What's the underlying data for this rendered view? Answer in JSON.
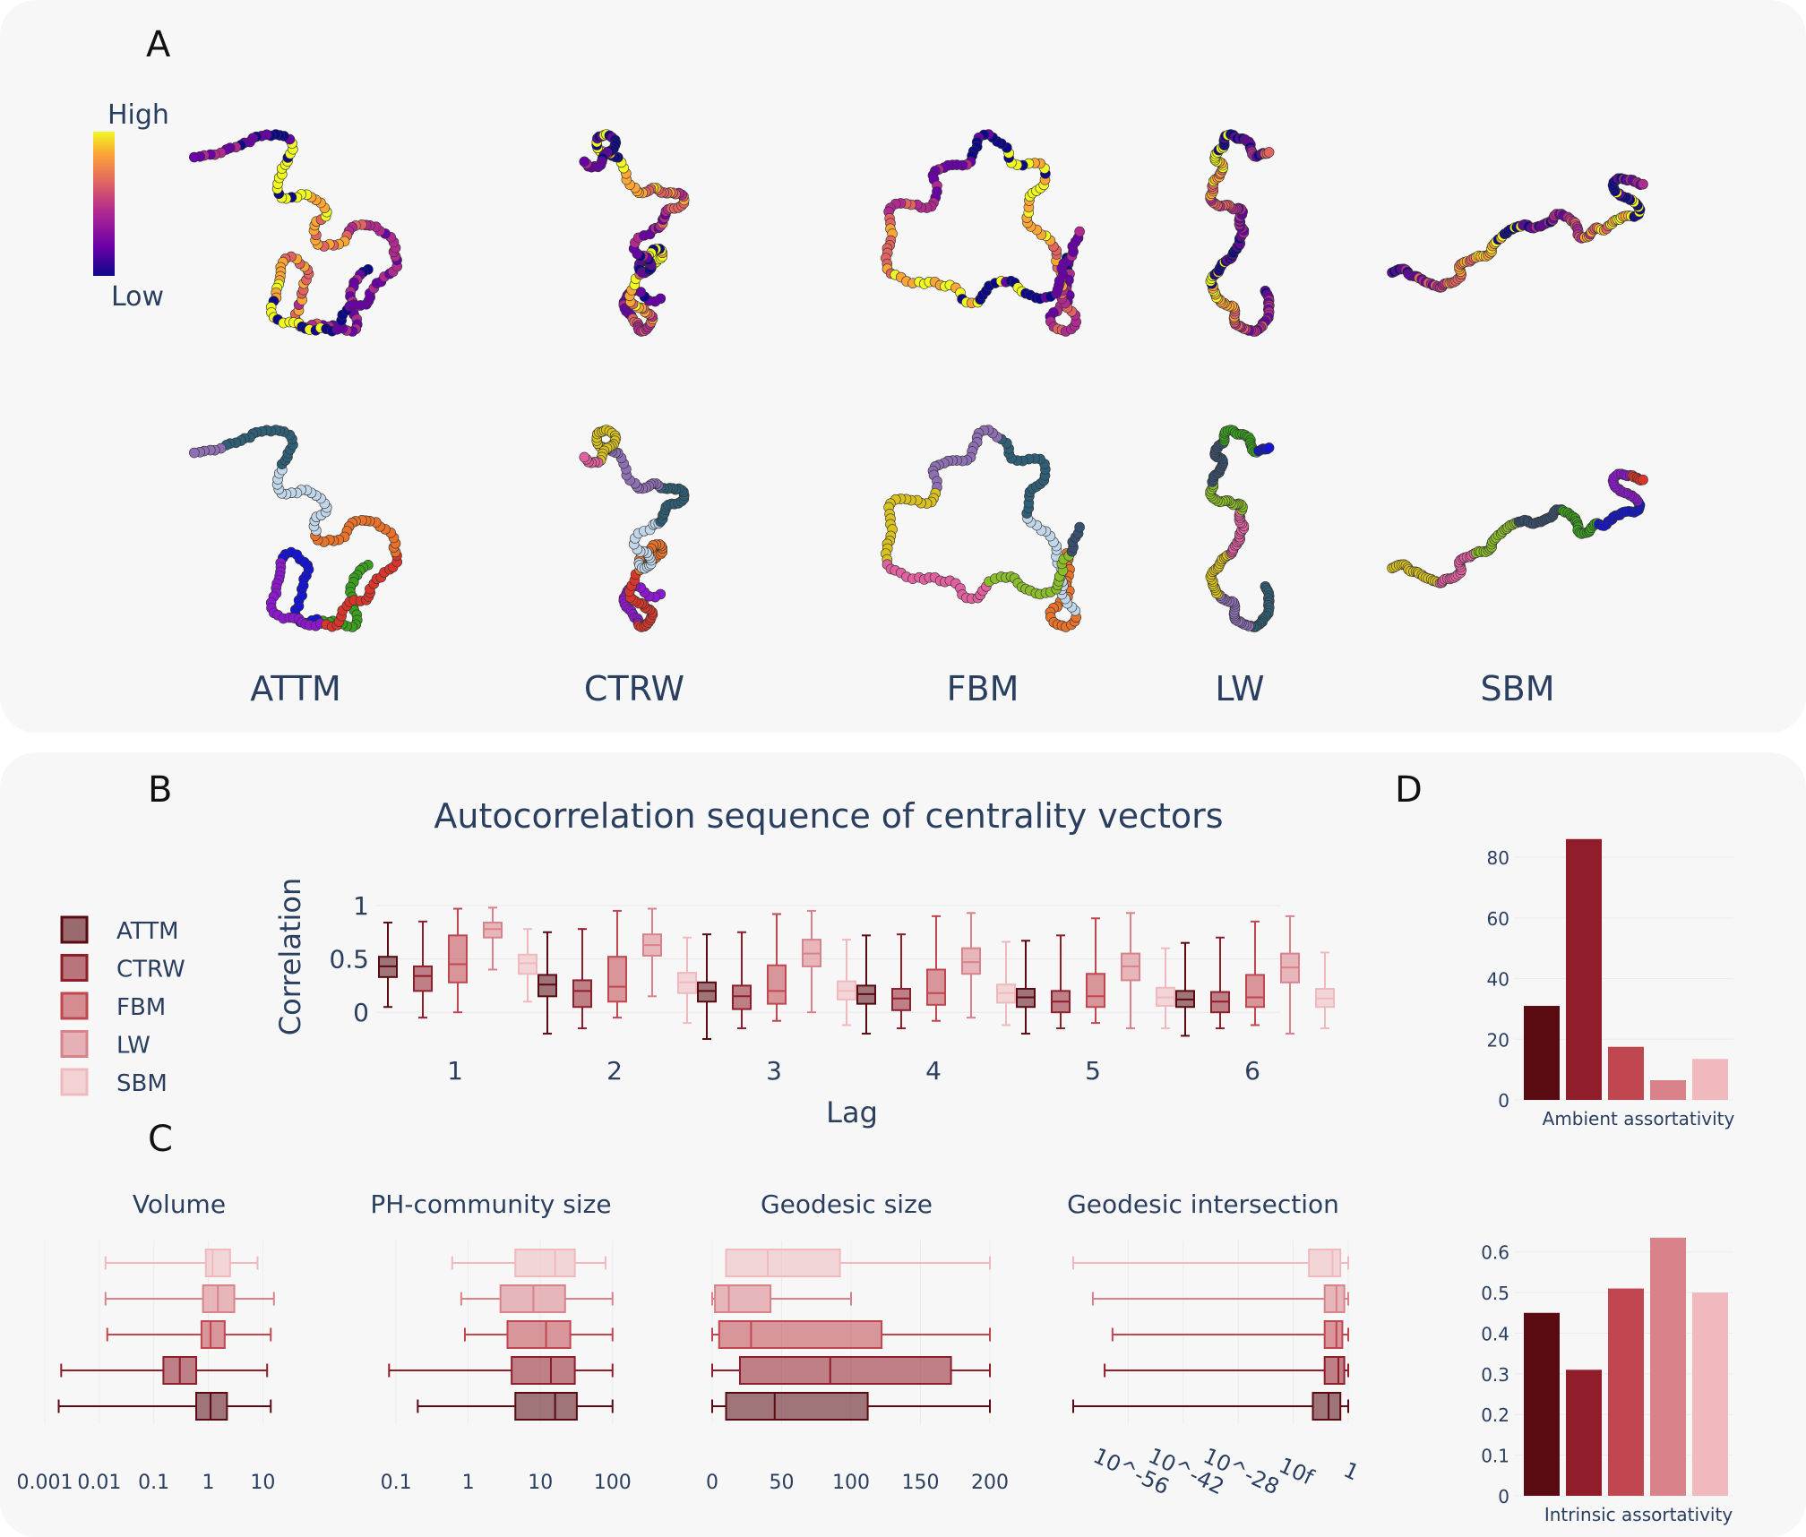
{
  "panels": {
    "A": {
      "letter": "A",
      "colorbar_high": "High",
      "colorbar_low": "Low",
      "models": [
        "ATTM",
        "CTRW",
        "FBM",
        "LW",
        "SBM"
      ]
    },
    "B": {
      "letter": "B"
    },
    "C": {
      "letter": "C"
    },
    "D": {
      "letter": "D"
    }
  },
  "palette": {
    "ATTM": "#5a0b12",
    "CTRW": "#8f1d2a",
    "FBM": "#c0464f",
    "LW": "#d9828a",
    "SBM": "#efb9be",
    "colorscale": [
      "#0d0887",
      "#6a00a8",
      "#b12a90",
      "#e16462",
      "#fca636",
      "#f0f921"
    ],
    "community_colors": [
      "#3a9e1e",
      "#1414d2",
      "#8d18cf",
      "#d8362a",
      "#e8722a",
      "#c2d6ea",
      "#2f5f76",
      "#8e6fb3",
      "#d9c21e",
      "#e060a0",
      "#8bbd2a",
      "#39506e"
    ]
  },
  "chart_data": [
    {
      "type": "box",
      "id": "B",
      "title": "Autocorrelation sequence of centrality vectors",
      "xlabel": "Lag",
      "ylabel": "Correlation",
      "categories": [
        "1",
        "2",
        "3",
        "4",
        "5",
        "6"
      ],
      "ylim": [
        -0.25,
        1.05
      ],
      "yticks": [
        "1",
        "0.5",
        "0"
      ],
      "legend": [
        "ATTM",
        "CTRW",
        "FBM",
        "LW",
        "SBM"
      ],
      "series": [
        {
          "name": "ATTM",
          "boxes": [
            [
              0.05,
              0.33,
              0.43,
              0.52,
              0.84
            ],
            [
              -0.2,
              0.15,
              0.26,
              0.35,
              0.75
            ],
            [
              -0.25,
              0.1,
              0.2,
              0.28,
              0.73
            ],
            [
              -0.2,
              0.08,
              0.17,
              0.25,
              0.72
            ],
            [
              -0.2,
              0.05,
              0.14,
              0.22,
              0.67
            ],
            [
              -0.22,
              0.05,
              0.12,
              0.2,
              0.65
            ]
          ]
        },
        {
          "name": "CTRW",
          "boxes": [
            [
              -0.05,
              0.2,
              0.34,
              0.43,
              0.85
            ],
            [
              -0.15,
              0.05,
              0.2,
              0.3,
              0.78
            ],
            [
              -0.15,
              0.03,
              0.15,
              0.25,
              0.75
            ],
            [
              -0.15,
              0.02,
              0.13,
              0.22,
              0.73
            ],
            [
              -0.15,
              0.0,
              0.1,
              0.2,
              0.72
            ],
            [
              -0.15,
              0.0,
              0.1,
              0.19,
              0.7
            ]
          ]
        },
        {
          "name": "FBM",
          "boxes": [
            [
              0.0,
              0.28,
              0.45,
              0.72,
              0.97
            ],
            [
              -0.05,
              0.1,
              0.24,
              0.52,
              0.95
            ],
            [
              -0.08,
              0.08,
              0.2,
              0.44,
              0.92
            ],
            [
              -0.08,
              0.07,
              0.18,
              0.4,
              0.9
            ],
            [
              -0.1,
              0.05,
              0.15,
              0.36,
              0.88
            ],
            [
              -0.12,
              0.05,
              0.14,
              0.35,
              0.85
            ]
          ]
        },
        {
          "name": "LW",
          "boxes": [
            [
              0.4,
              0.7,
              0.78,
              0.84,
              0.98
            ],
            [
              0.15,
              0.53,
              0.63,
              0.73,
              0.97
            ],
            [
              0.0,
              0.43,
              0.55,
              0.68,
              0.95
            ],
            [
              -0.05,
              0.36,
              0.47,
              0.6,
              0.93
            ],
            [
              -0.15,
              0.3,
              0.43,
              0.55,
              0.93
            ],
            [
              -0.2,
              0.28,
              0.42,
              0.55,
              0.9
            ]
          ]
        },
        {
          "name": "SBM",
          "boxes": [
            [
              0.1,
              0.36,
              0.46,
              0.54,
              0.78
            ],
            [
              -0.1,
              0.18,
              0.28,
              0.37,
              0.7
            ],
            [
              -0.12,
              0.12,
              0.2,
              0.29,
              0.68
            ],
            [
              -0.12,
              0.09,
              0.18,
              0.26,
              0.66
            ],
            [
              -0.15,
              0.06,
              0.14,
              0.23,
              0.6
            ],
            [
              -0.15,
              0.05,
              0.13,
              0.22,
              0.56
            ]
          ]
        }
      ]
    },
    {
      "type": "box",
      "id": "C1",
      "title": "Volume",
      "scale": "log",
      "xlim": [
        0.001,
        40
      ],
      "xticks": [
        "0.001",
        "0.01",
        "0.1",
        "1",
        "10"
      ],
      "series": [
        {
          "name": "ATTM",
          "box": [
            0.0018,
            0.6,
            1.1,
            2.2,
            14
          ]
        },
        {
          "name": "CTRW",
          "box": [
            0.002,
            0.15,
            0.3,
            0.6,
            12
          ]
        },
        {
          "name": "FBM",
          "box": [
            0.014,
            0.75,
            1.1,
            2.0,
            14
          ]
        },
        {
          "name": "LW",
          "box": [
            0.013,
            0.8,
            1.5,
            3.0,
            16
          ]
        },
        {
          "name": "SBM",
          "box": [
            0.013,
            0.9,
            1.2,
            2.5,
            8
          ]
        }
      ]
    },
    {
      "type": "box",
      "id": "C2",
      "title": "PH-community size",
      "scale": "log",
      "xlim": [
        0.03,
        200
      ],
      "xticks": [
        "0.1",
        "1",
        "10",
        "100"
      ],
      "series": [
        {
          "name": "ATTM",
          "box": [
            0.2,
            4.5,
            16,
            32,
            100
          ]
        },
        {
          "name": "CTRW",
          "box": [
            0.08,
            4,
            14,
            30,
            100
          ]
        },
        {
          "name": "FBM",
          "box": [
            0.9,
            3.5,
            12,
            26,
            100
          ]
        },
        {
          "name": "LW",
          "box": [
            0.8,
            2.8,
            8,
            22,
            100
          ]
        },
        {
          "name": "SBM",
          "box": [
            0.6,
            4.5,
            16,
            30,
            80
          ]
        }
      ]
    },
    {
      "type": "box",
      "id": "C3",
      "title": "Geodesic size",
      "scale": "linear",
      "xlim": [
        0,
        200
      ],
      "xticks": [
        "0",
        "50",
        "100",
        "150",
        "200"
      ],
      "series": [
        {
          "name": "ATTM",
          "box": [
            0,
            10,
            45,
            112,
            200
          ]
        },
        {
          "name": "CTRW",
          "box": [
            0,
            20,
            85,
            172,
            200
          ]
        },
        {
          "name": "FBM",
          "box": [
            0,
            5,
            28,
            122,
            200
          ]
        },
        {
          "name": "LW",
          "box": [
            0,
            2,
            12,
            42,
            100
          ]
        },
        {
          "name": "SBM",
          "box": [
            10,
            10,
            40,
            92,
            200
          ]
        }
      ]
    },
    {
      "type": "box",
      "id": "C4",
      "title": "Geodesic intersection",
      "scale": "log",
      "xlim_exp": [
        -70,
        0
      ],
      "xticks": [
        "10^-56",
        "10^-42",
        "10^-28",
        "10f",
        "1"
      ],
      "series": [
        {
          "name": "ATTM",
          "box_exp": [
            -70,
            -9,
            -5,
            -2,
            0
          ]
        },
        {
          "name": "CTRW",
          "box_exp": [
            -62,
            -6,
            -2.5,
            -1,
            0
          ]
        },
        {
          "name": "FBM",
          "box_exp": [
            -60,
            -6,
            -3,
            -1.5,
            0
          ]
        },
        {
          "name": "LW",
          "box_exp": [
            -65,
            -6,
            -3,
            -1,
            0
          ]
        },
        {
          "name": "SBM",
          "box_exp": [
            -70,
            -10,
            -4,
            -2,
            0
          ]
        }
      ]
    },
    {
      "type": "bar",
      "id": "D1",
      "xlabel": "Ambient assortativity",
      "categories": [
        "ATTM",
        "CTRW",
        "FBM",
        "LW",
        "SBM"
      ],
      "values": [
        31,
        86,
        17.5,
        6.5,
        13.5
      ],
      "ylim": [
        0,
        88
      ],
      "yticks": [
        "0",
        "20",
        "40",
        "60",
        "80"
      ]
    },
    {
      "type": "bar",
      "id": "D2",
      "xlabel": "Intrinsic assortativity",
      "categories": [
        "ATTM",
        "CTRW",
        "FBM",
        "LW",
        "SBM"
      ],
      "values": [
        0.45,
        0.31,
        0.51,
        0.635,
        0.5
      ],
      "ylim": [
        0,
        0.65
      ],
      "yticks": [
        "0",
        "0.1",
        "0.2",
        "0.3",
        "0.4",
        "0.5",
        "0.6"
      ]
    }
  ]
}
